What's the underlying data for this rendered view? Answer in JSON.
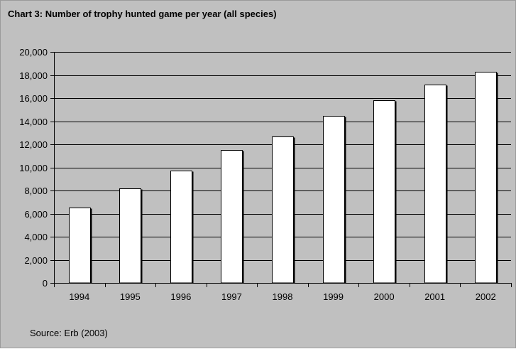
{
  "chart_data": {
    "type": "bar",
    "title": "Chart 3: Number of trophy hunted game per year (all species)",
    "categories": [
      "1994",
      "1995",
      "1996",
      "1997",
      "1998",
      "1999",
      "2000",
      "2001",
      "2002"
    ],
    "values": [
      6500,
      8200,
      9700,
      11500,
      12700,
      14450,
      15800,
      17150,
      18250
    ],
    "ylim": [
      0,
      20000
    ],
    "yticks": [
      0,
      2000,
      4000,
      6000,
      8000,
      10000,
      12000,
      14000,
      16000,
      18000,
      20000
    ],
    "ytick_labels": [
      "0",
      "2,000",
      "4,000",
      "6,000",
      "8,000",
      "10,000",
      "12,000",
      "14,000",
      "16,000",
      "18,000",
      "20,000"
    ],
    "xlabel": "",
    "ylabel": "",
    "grid": true,
    "legend": "none",
    "source": "Source: Erb (2003)",
    "colors": {
      "background": "#c0c0c0",
      "bar_fill": "#ffffff",
      "bar_edge": "#000000",
      "gridline": "#000000"
    }
  }
}
